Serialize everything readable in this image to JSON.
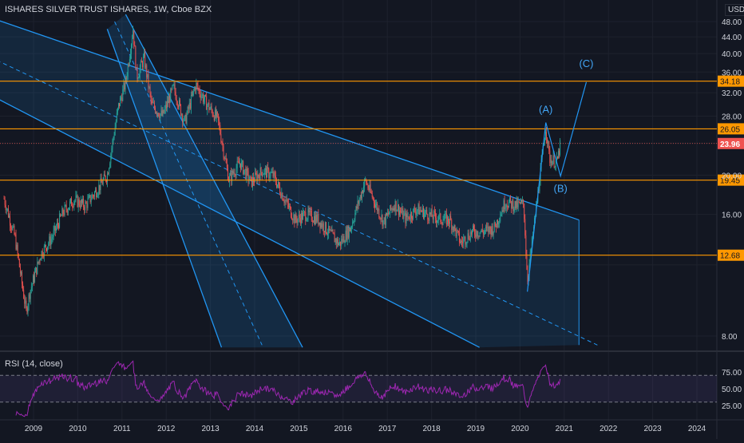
{
  "header": {
    "title": "ISHARES SILVER TRUST ISHARES, 1W, Cboe BZX",
    "currency": "USD"
  },
  "colors": {
    "background": "#131722",
    "candle_up": "#26a69a",
    "candle_down": "#ef5350",
    "channel": "#2196f3",
    "level": "#ff9800",
    "rsi": "#9c27b0",
    "text": "#d1d4dc",
    "current_price": "#ef5350"
  },
  "chart_data": {
    "type": "candlestick",
    "x_labels": [
      "2009",
      "2010",
      "2011",
      "2012",
      "2013",
      "2014",
      "2015",
      "2016",
      "2017",
      "2018",
      "2019",
      "2020",
      "2021",
      "2022",
      "2023",
      "2024"
    ],
    "y_ticks": [
      "48.00",
      "44.00",
      "40.00",
      "36.00",
      "32.00",
      "28.00",
      "20.00",
      "16.00",
      "8.00"
    ],
    "y_scale": "log",
    "horizontal_levels": [
      {
        "label": "34.18",
        "value": 34.18
      },
      {
        "label": "26.05",
        "value": 26.05
      },
      {
        "label": "19.45",
        "value": 19.45
      },
      {
        "label": "12.68",
        "value": 12.68
      }
    ],
    "current_price": {
      "label": "23.96",
      "value": 23.96
    },
    "annotations": [
      {
        "text": "(A)",
        "date": "2020-08",
        "price": 28.5
      },
      {
        "text": "(B)",
        "date": "2020-12",
        "price": 18.2
      },
      {
        "text": "(C)",
        "date": "2021-07",
        "price": 37.0
      }
    ],
    "price_series": [
      [
        "2008-05",
        17.5
      ],
      [
        "2008-08",
        14
      ],
      [
        "2008-11",
        9.2
      ],
      [
        "2008-12",
        10.3
      ],
      [
        "2009-03",
        12.8
      ],
      [
        "2009-06",
        14
      ],
      [
        "2009-09",
        16.2
      ],
      [
        "2009-12",
        17.4
      ],
      [
        "2010-03",
        16.8
      ],
      [
        "2010-06",
        18.3
      ],
      [
        "2010-09",
        20
      ],
      [
        "2010-12",
        29.5
      ],
      [
        "2011-02",
        34
      ],
      [
        "2011-04",
        46
      ],
      [
        "2011-05",
        35
      ],
      [
        "2011-07",
        39
      ],
      [
        "2011-09",
        30
      ],
      [
        "2011-12",
        28
      ],
      [
        "2012-03",
        33
      ],
      [
        "2012-06",
        27
      ],
      [
        "2012-09",
        33.5
      ],
      [
        "2012-12",
        30
      ],
      [
        "2013-03",
        27.5
      ],
      [
        "2013-06",
        19.5
      ],
      [
        "2013-09",
        21.5
      ],
      [
        "2013-12",
        19.2
      ],
      [
        "2014-03",
        20.5
      ],
      [
        "2014-06",
        20
      ],
      [
        "2014-09",
        17.5
      ],
      [
        "2014-12",
        15.5
      ],
      [
        "2015-03",
        16
      ],
      [
        "2015-06",
        15.6
      ],
      [
        "2015-09",
        14.5
      ],
      [
        "2015-12",
        13.5
      ],
      [
        "2016-03",
        14.8
      ],
      [
        "2016-07",
        19.4
      ],
      [
        "2016-10",
        16.8
      ],
      [
        "2016-12",
        15.3
      ],
      [
        "2017-03",
        17
      ],
      [
        "2017-06",
        15.6
      ],
      [
        "2017-09",
        16.5
      ],
      [
        "2017-12",
        16
      ],
      [
        "2018-03",
        15.6
      ],
      [
        "2018-06",
        15.5
      ],
      [
        "2018-09",
        13.6
      ],
      [
        "2018-12",
        14.5
      ],
      [
        "2019-03",
        14.5
      ],
      [
        "2019-06",
        14.8
      ],
      [
        "2019-09",
        17.2
      ],
      [
        "2019-12",
        16.8
      ],
      [
        "2020-02",
        17
      ],
      [
        "2020-03",
        11
      ],
      [
        "2020-05",
        15.5
      ],
      [
        "2020-07",
        22
      ],
      [
        "2020-08",
        26.5
      ],
      [
        "2020-09",
        22
      ],
      [
        "2020-11",
        21.5
      ],
      [
        "2020-12",
        23.96
      ]
    ],
    "channels": [
      {
        "name": "long-term",
        "upper": [
          [
            "2008-03",
            48.5
          ],
          [
            "2021-05",
            15.5
          ]
        ],
        "lower": [
          [
            "2008-03",
            31
          ],
          [
            "2019-02",
            7.5
          ]
        ],
        "mid_dashed": true
      },
      {
        "name": "steep",
        "left": [
          [
            "2010-09",
            46
          ],
          [
            "2013-04",
            7.5
          ]
        ],
        "right": [
          [
            "2011-02",
            50
          ],
          [
            "2015-02",
            7.5
          ]
        ],
        "mid_dashed": true
      }
    ],
    "wave_path": [
      [
        "2020-03",
        10.3
      ],
      [
        "2020-08",
        27.0
      ],
      [
        "2020-12",
        19.9
      ],
      [
        "2021-07",
        34.0
      ]
    ],
    "rsi": {
      "label": "RSI (14, close)",
      "y_ticks": [
        "75.00",
        "50.00",
        "25.00"
      ],
      "upper_band": 70,
      "lower_band": 30
    }
  }
}
